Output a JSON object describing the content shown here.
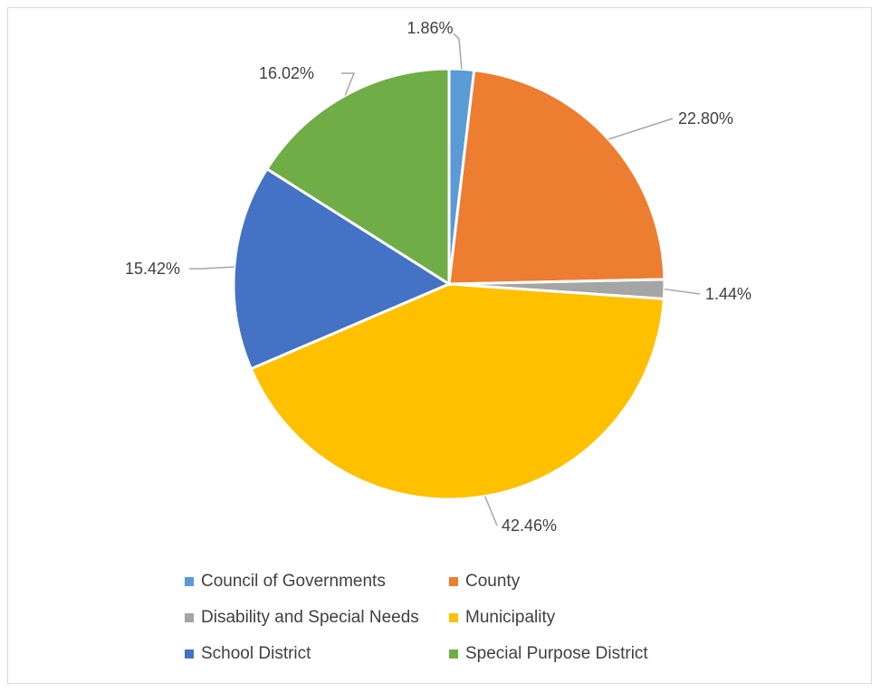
{
  "chart_data": {
    "type": "pie",
    "categories": [
      "Council of Governments",
      "County",
      "Disability and Special Needs",
      "Municipality",
      "School District",
      "Special Purpose District"
    ],
    "values": [
      1.86,
      22.8,
      1.44,
      42.46,
      15.42,
      16.02
    ],
    "labels": [
      "1.86%",
      "22.80%",
      "1.44%",
      "42.46%",
      "15.42%",
      "16.02%"
    ],
    "colors": [
      "#5B9BD5",
      "#ED7D31",
      "#A5A5A5",
      "#FFC000",
      "#4472C4",
      "#70AD47"
    ],
    "legend_position": "bottom"
  }
}
